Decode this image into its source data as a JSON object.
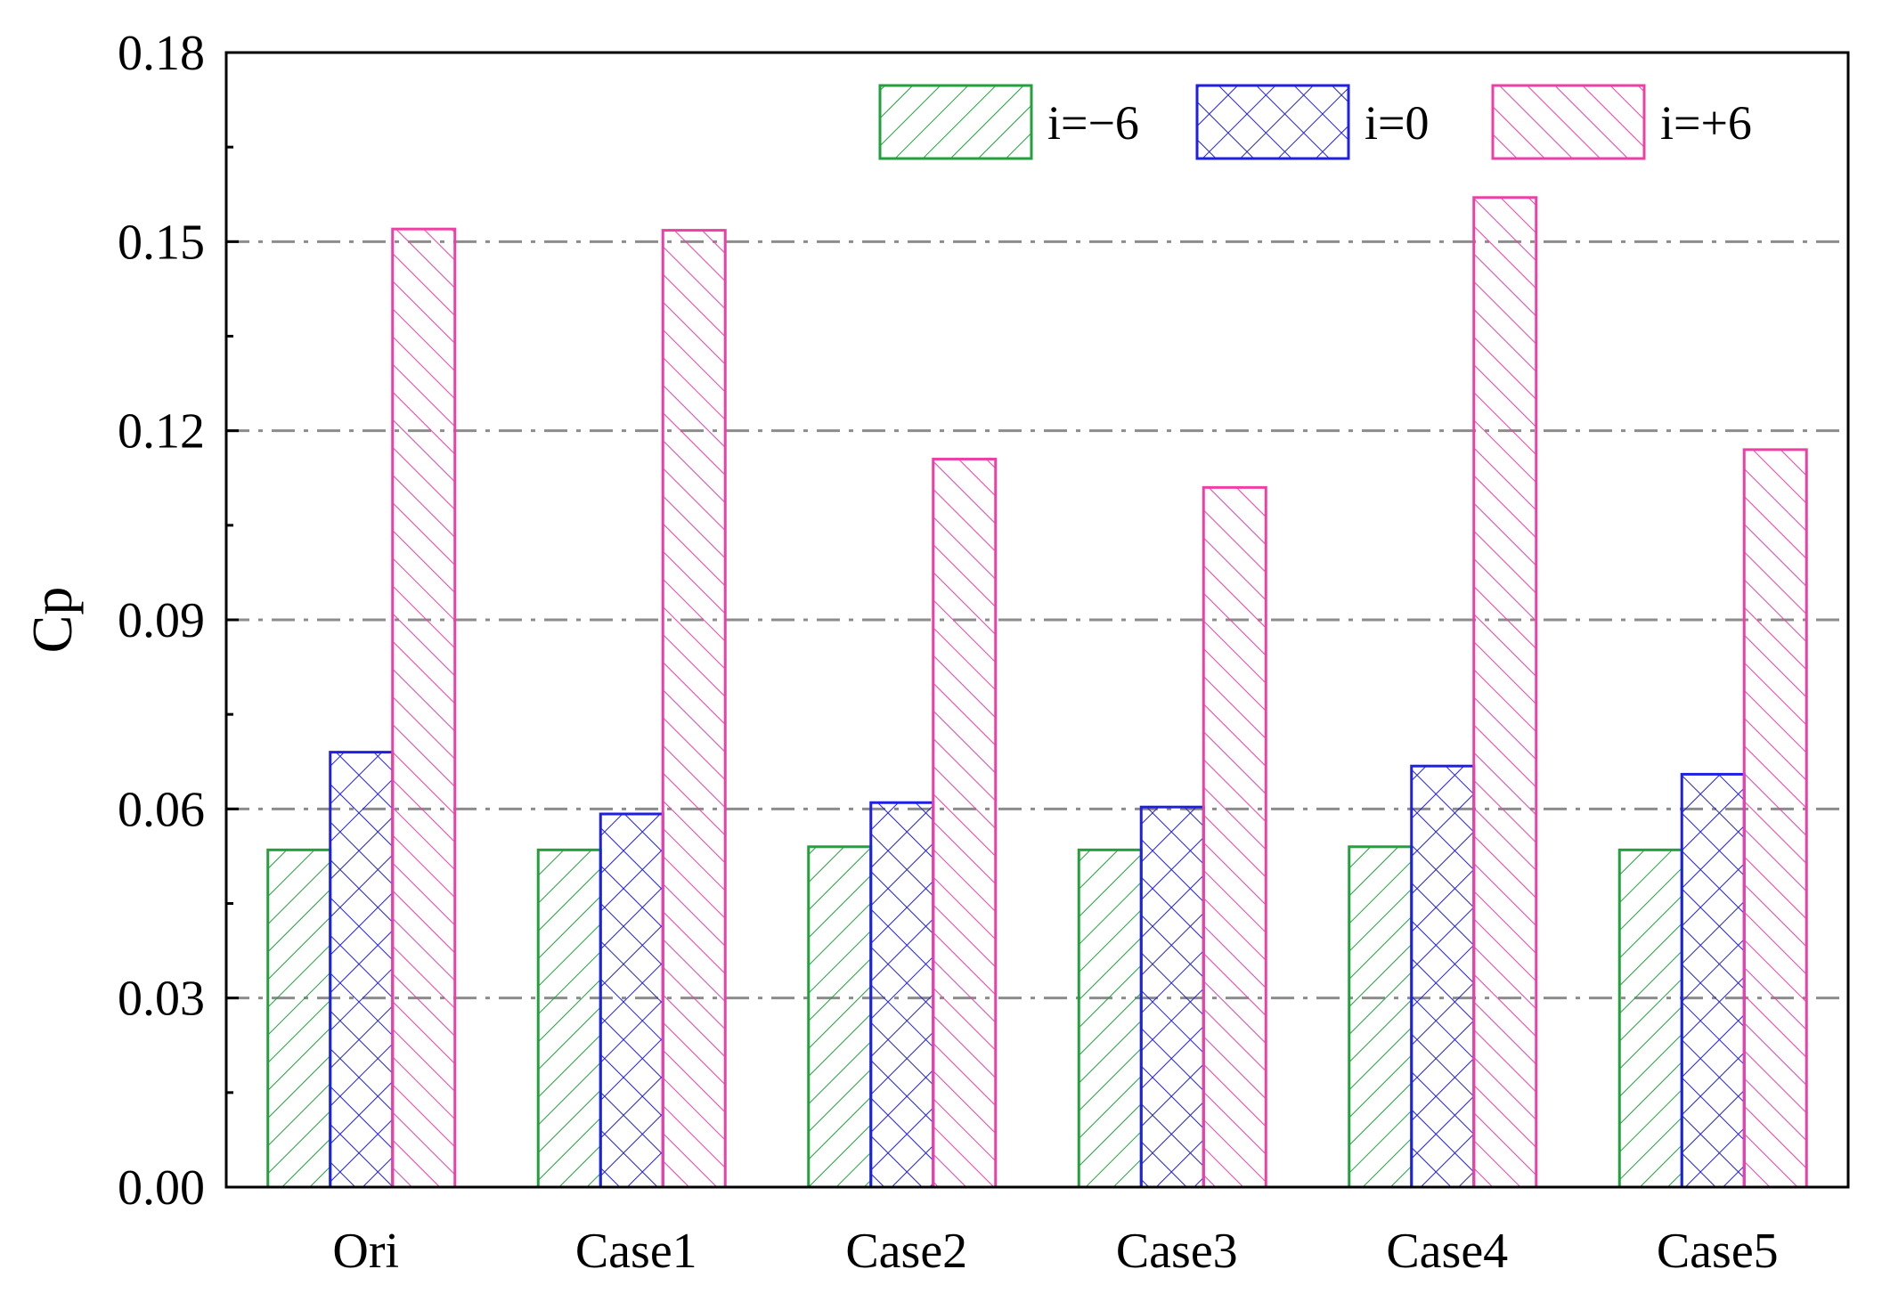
{
  "chart_data": {
    "type": "bar",
    "title": "",
    "xlabel": "",
    "ylabel": "Cp",
    "ylim": [
      0,
      0.18
    ],
    "yticks": [
      "0.00",
      "0.03",
      "0.06",
      "0.09",
      "0.12",
      "0.15",
      "0.18"
    ],
    "grid": "horizontal dash-dot",
    "legend_position": "top-right",
    "categories": [
      "Ori",
      "Case1",
      "Case2",
      "Case3",
      "Case4",
      "Case5"
    ],
    "series": [
      {
        "name": "i=−6",
        "color": "#22a03c",
        "hatch": "forward-diagonal",
        "values": [
          0.0535,
          0.0535,
          0.054,
          0.0535,
          0.054,
          0.0535
        ]
      },
      {
        "name": "i=0",
        "color": "#1f1fe6",
        "hatch": "crosshatch",
        "values": [
          0.069,
          0.0592,
          0.061,
          0.0603,
          0.0668,
          0.0655
        ]
      },
      {
        "name": "i=+6",
        "color": "#ee3fa5",
        "hatch": "back-diagonal",
        "values": [
          0.152,
          0.1518,
          0.1155,
          0.111,
          0.157,
          0.117
        ]
      }
    ]
  }
}
